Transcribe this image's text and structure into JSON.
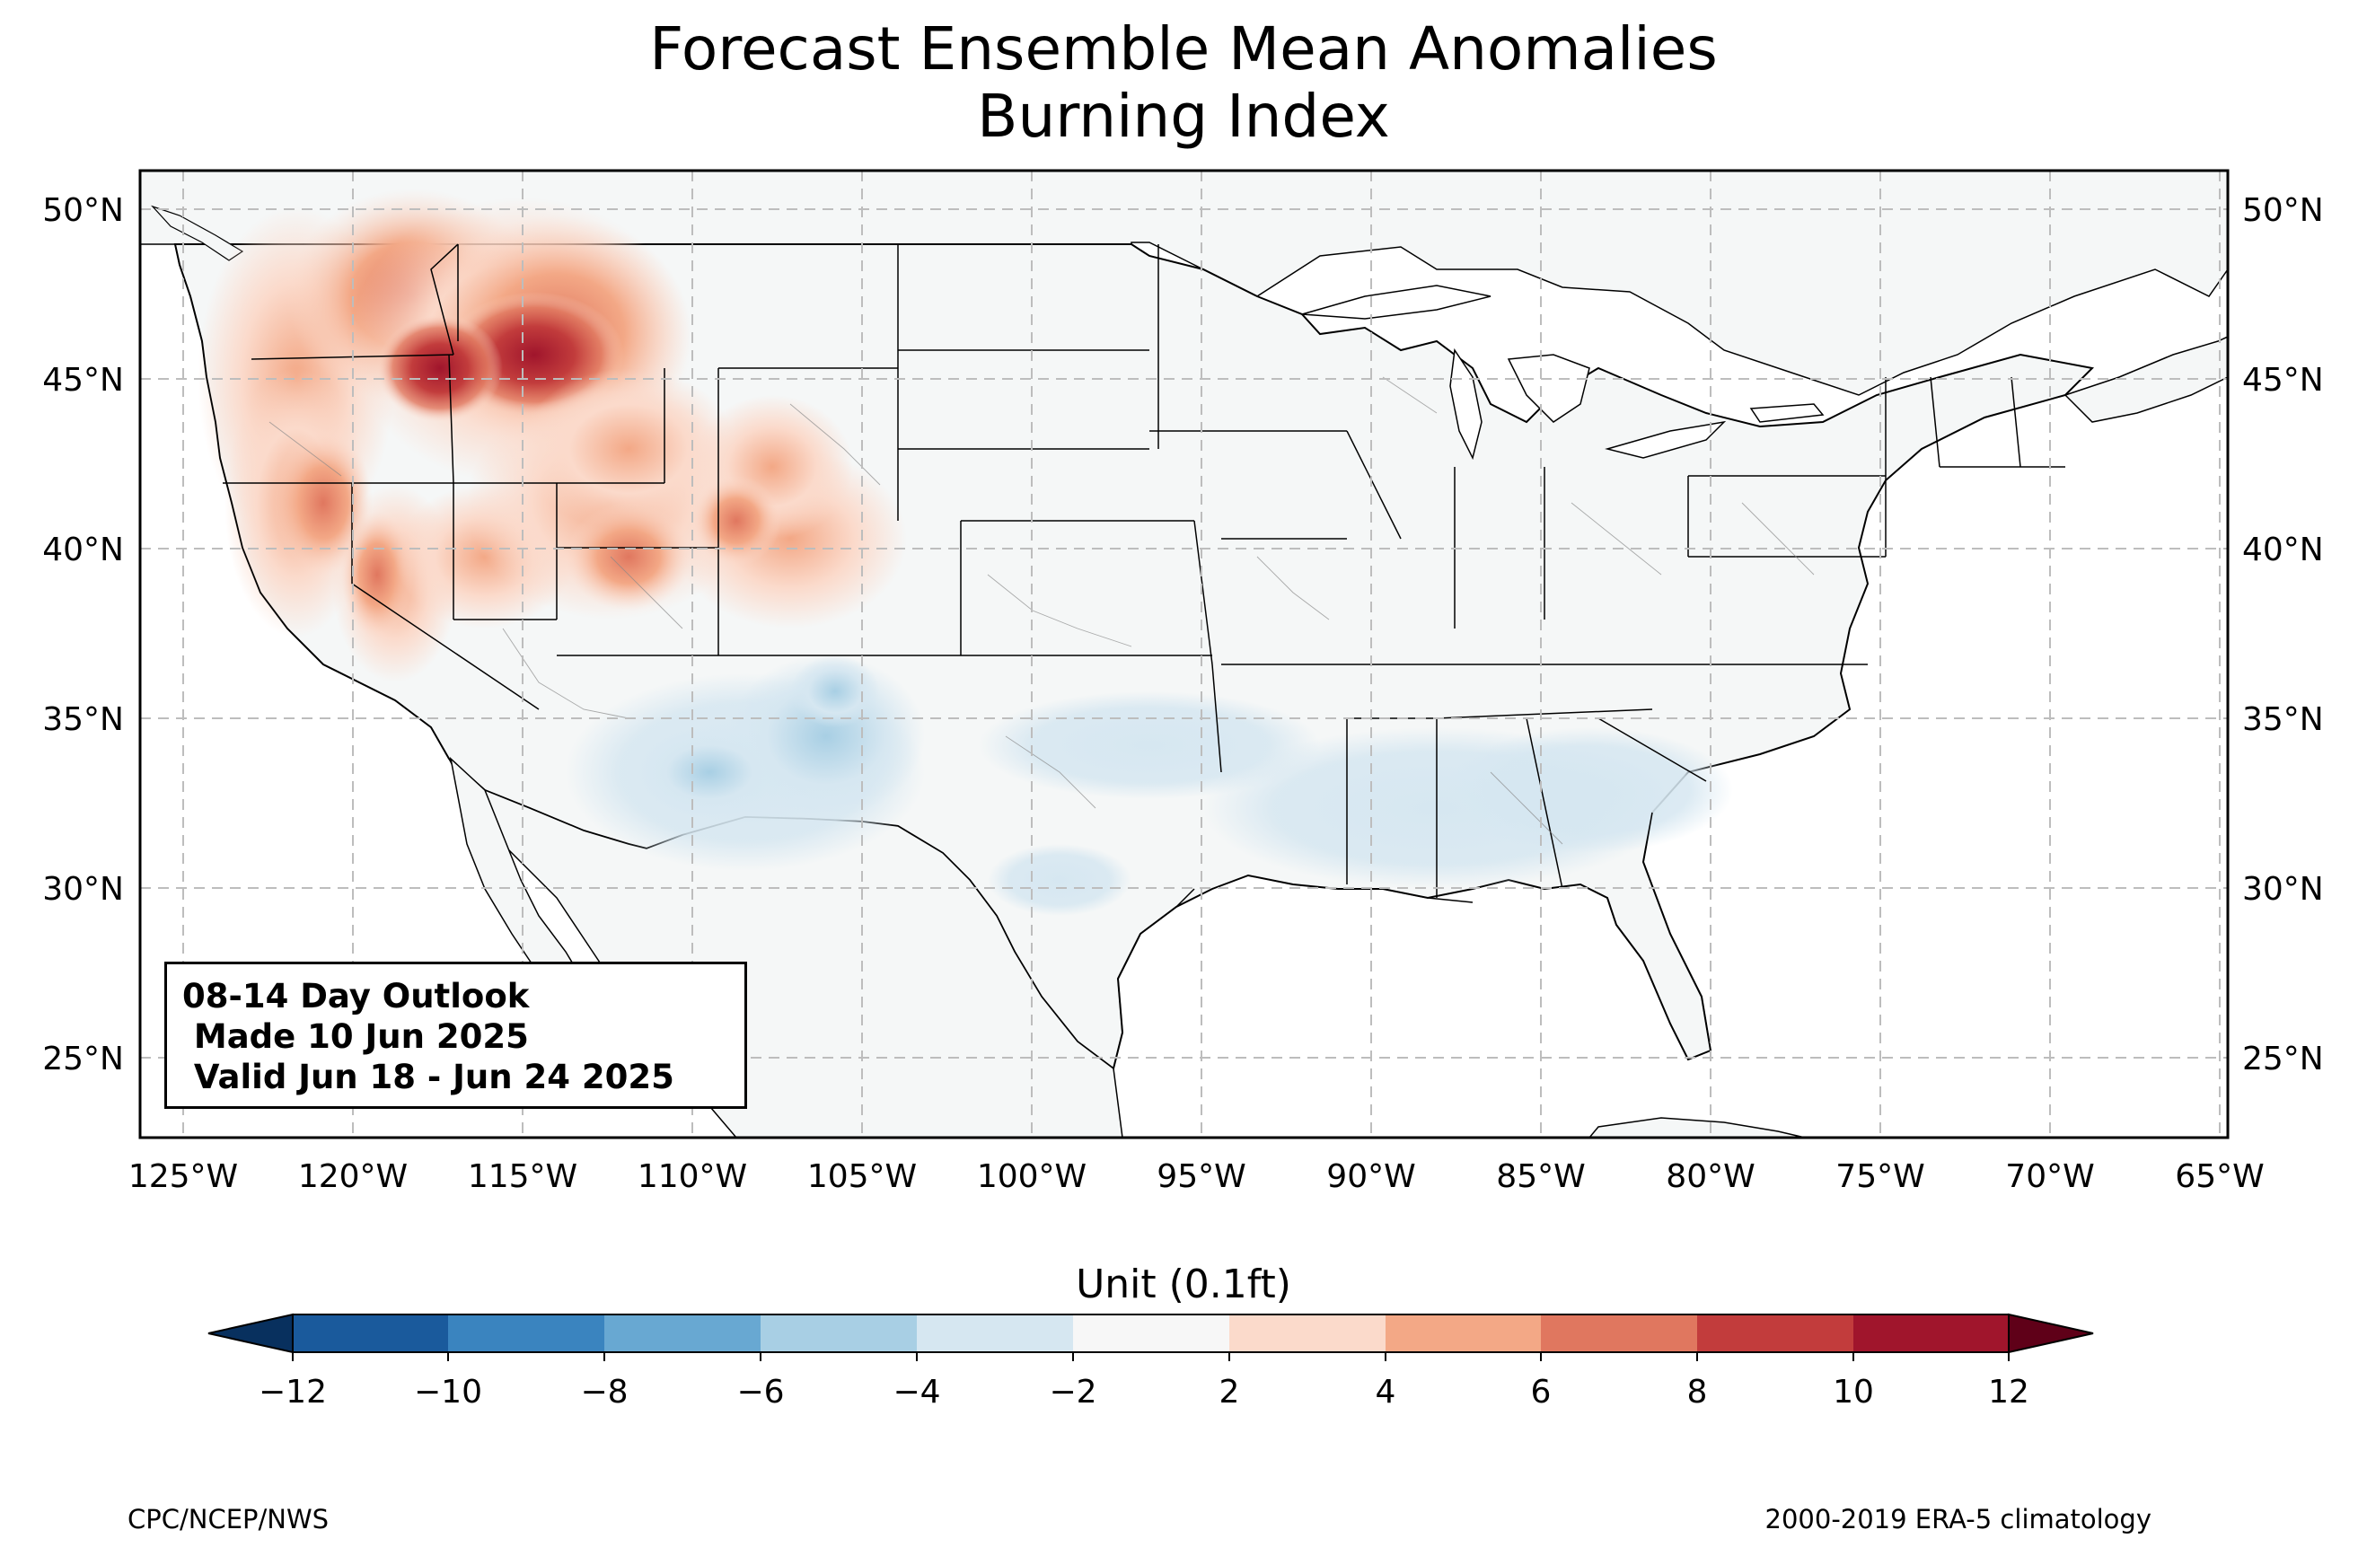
{
  "title": {
    "line1": "Forecast Ensemble Mean Anomalies",
    "line2": "Burning Index"
  },
  "outlook": {
    "line1": "08-14 Day Outlook",
    "line2": " Made 10 Jun 2025",
    "line3": " Valid Jun 18 - Jun 24 2025"
  },
  "axes": {
    "lon_ticks": [
      "125°W",
      "120°W",
      "115°W",
      "110°W",
      "105°W",
      "100°W",
      "95°W",
      "90°W",
      "85°W",
      "80°W",
      "75°W",
      "70°W",
      "65°W"
    ],
    "lat_ticks": [
      "50°N",
      "45°N",
      "40°N",
      "35°N",
      "30°N",
      "25°N"
    ],
    "lon_range": [
      -126.3,
      -65
    ],
    "lat_range": [
      22.8,
      51.2
    ],
    "grid": "dashed"
  },
  "colorbar": {
    "label": "Unit (0.1ft)",
    "ticks": [
      "−12",
      "−10",
      "−8",
      "−6",
      "−4",
      "−2",
      "2",
      "4",
      "6",
      "8",
      "10",
      "12"
    ],
    "colors": [
      "#1a5a9c",
      "#3a84bf",
      "#68a8d2",
      "#a8cfe4",
      "#d6e7f1",
      "#f7f7f7",
      "#fbdacb",
      "#f3a886",
      "#e0775f",
      "#c23c3c",
      "#a0152c"
    ],
    "under_color": "#08305e",
    "over_color": "#5f0018"
  },
  "footer": {
    "left": "CPC/NCEP/NWS",
    "right": "2000-2019 ERA-5 climatology"
  },
  "map_regions": [
    {
      "label": "strong positive anomaly",
      "center": [
        -114.5,
        45.5
      ],
      "value_range": [
        10,
        12
      ]
    },
    {
      "label": "positive anomaly",
      "center": [
        -120,
        44
      ],
      "value_range": [
        4,
        8
      ]
    },
    {
      "label": "weak negative anomaly",
      "center": [
        -105,
        35
      ],
      "value_range": [
        -6,
        -2
      ]
    },
    {
      "label": "weak negative anomaly",
      "center": [
        -88,
        32.5
      ],
      "value_range": [
        -4,
        -2
      ]
    }
  ]
}
